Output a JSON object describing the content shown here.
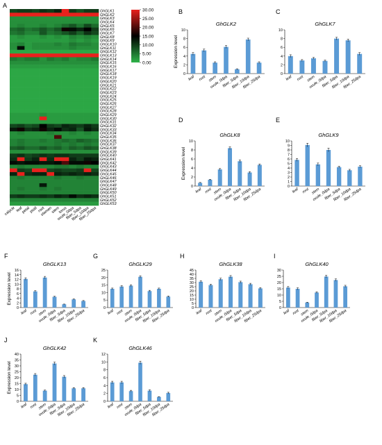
{
  "heatmap": {
    "panel_label": "A",
    "genes": [
      "GhGLK1",
      "GhGLK2",
      "GhGLK3",
      "GhGLK4",
      "GhGLK5",
      "GhGLK6",
      "GhGLK7",
      "GhGLK8",
      "GhGLK9",
      "GhGLK10",
      "GhGLK11",
      "GhGLK12",
      "GhGLK13",
      "GhGLK14",
      "GhGLK15",
      "GhGLK16",
      "GhGLK17",
      "GhGLK18",
      "GhGLK19",
      "GhGLK20",
      "GhGLK21",
      "GhGLK22",
      "GhGLK23",
      "GhGLK24",
      "GhGLK25",
      "GhGLK26",
      "GhGLK27",
      "GhGLK28",
      "GhGLK29",
      "GhGLK30",
      "GhGLK31",
      "GhGLK32",
      "GhGLK33",
      "GhGLK34",
      "GhGLK35",
      "GhGLK36",
      "GhGLK37",
      "GhGLK38",
      "GhGLK39",
      "GhGLK40",
      "GhGLK41",
      "GhGLK42",
      "GhGLK43",
      "GhGLK44",
      "GhGLK45",
      "GhGLK46",
      "GhGLK47",
      "GhGLK48",
      "GhGLK49",
      "GhGLK50",
      "GhGLK51",
      "GhGLK52",
      "GhGLK53"
    ],
    "tissues": [
      "calycle",
      "leaf",
      "petal",
      "pistil",
      "root",
      "stamen",
      "stem",
      "torus",
      "ovule_0dpa",
      "fiber_5dpa",
      "fiber_10dpa",
      "fiber_25dpa"
    ],
    "scale_ticks": [
      "30.00",
      "25.00",
      "20.00",
      "15.00",
      "10.00",
      "5.00",
      "0.00"
    ],
    "scale_min": 0,
    "scale_max": 30,
    "colors": {
      "low": "#2fb34a",
      "mid": "#000000",
      "high": "#e8211d"
    },
    "matrix": [
      [
        9,
        10,
        10,
        9,
        11,
        10,
        12,
        30,
        10,
        8,
        10,
        10
      ],
      [
        30,
        30,
        30,
        30,
        30,
        30,
        30,
        30,
        30,
        30,
        30,
        30
      ],
      [
        3,
        3,
        3,
        3,
        3,
        3,
        3,
        3,
        3,
        3,
        3,
        3
      ],
      [
        3,
        3,
        3,
        3,
        3,
        3,
        3,
        3,
        3,
        3,
        3,
        3
      ],
      [
        3,
        4,
        3,
        3,
        4,
        3,
        4,
        6,
        8,
        5,
        9,
        6
      ],
      [
        6,
        7,
        5,
        6,
        8,
        6,
        8,
        16,
        14,
        12,
        15,
        10
      ],
      [
        5,
        6,
        4,
        4,
        8,
        5,
        6,
        8,
        10,
        7,
        11,
        9
      ],
      [
        2,
        3,
        2,
        2,
        3,
        2,
        3,
        2,
        4,
        3,
        4,
        3
      ],
      [
        2,
        2,
        2,
        2,
        2,
        2,
        2,
        2,
        3,
        2,
        3,
        2
      ],
      [
        3,
        4,
        2,
        3,
        3,
        3,
        4,
        3,
        5,
        4,
        4,
        3
      ],
      [
        3,
        14,
        2,
        3,
        3,
        3,
        3,
        3,
        4,
        3,
        3,
        3
      ],
      [
        1,
        1,
        1,
        1,
        1,
        1,
        1,
        1,
        1,
        1,
        1,
        1
      ],
      [
        30,
        30,
        30,
        30,
        30,
        30,
        30,
        30,
        30,
        30,
        30,
        30
      ],
      [
        5,
        4,
        5,
        5,
        3,
        5,
        4,
        5,
        3,
        4,
        4,
        5
      ],
      [
        3,
        3,
        3,
        3,
        3,
        3,
        3,
        3,
        3,
        3,
        3,
        3
      ],
      [
        2,
        2,
        2,
        2,
        2,
        2,
        2,
        2,
        2,
        2,
        2,
        2
      ],
      [
        1,
        1,
        1,
        1,
        1,
        1,
        1,
        1,
        1,
        1,
        1,
        1
      ],
      [
        1,
        1,
        1,
        1,
        1,
        1,
        1,
        1,
        1,
        1,
        1,
        1
      ],
      [
        1,
        1,
        1,
        1,
        1,
        1,
        1,
        1,
        1,
        1,
        1,
        1
      ],
      [
        1,
        1,
        1,
        1,
        1,
        1,
        1,
        1,
        1,
        1,
        1,
        1
      ],
      [
        1,
        1,
        1,
        1,
        1,
        1,
        1,
        1,
        1,
        1,
        1,
        1
      ],
      [
        1,
        1,
        1,
        1,
        1,
        1,
        1,
        1,
        1,
        1,
        1,
        1
      ],
      [
        1,
        1,
        1,
        1,
        1,
        1,
        1,
        1,
        1,
        1,
        1,
        1
      ],
      [
        1,
        1,
        1,
        1,
        1,
        1,
        1,
        1,
        1,
        1,
        1,
        1
      ],
      [
        1,
        1,
        1,
        1,
        1,
        1,
        1,
        1,
        1,
        1,
        1,
        1
      ],
      [
        1,
        1,
        1,
        1,
        1,
        1,
        1,
        1,
        1,
        1,
        1,
        1
      ],
      [
        1,
        1,
        1,
        1,
        1,
        1,
        1,
        1,
        1,
        1,
        1,
        1
      ],
      [
        1,
        1,
        1,
        1,
        1,
        1,
        1,
        1,
        1,
        1,
        1,
        1
      ],
      [
        2,
        2,
        2,
        2,
        3,
        2,
        2,
        2,
        2,
        2,
        2,
        2
      ],
      [
        2,
        2,
        2,
        2,
        30,
        2,
        2,
        2,
        2,
        2,
        2,
        2
      ],
      [
        2,
        2,
        2,
        2,
        2,
        2,
        2,
        2,
        2,
        2,
        2,
        2
      ],
      [
        9,
        10,
        8,
        9,
        15,
        10,
        9,
        12,
        11,
        10,
        12,
        10
      ],
      [
        13,
        16,
        11,
        12,
        16,
        12,
        14,
        11,
        12,
        8,
        13,
        11
      ],
      [
        3,
        4,
        3,
        3,
        3,
        4,
        3,
        3,
        4,
        3,
        4,
        3
      ],
      [
        3,
        3,
        3,
        3,
        3,
        3,
        20,
        3,
        3,
        3,
        3,
        3
      ],
      [
        4,
        5,
        4,
        4,
        5,
        4,
        5,
        6,
        5,
        7,
        6,
        5
      ],
      [
        4,
        5,
        4,
        4,
        4,
        4,
        5,
        4,
        5,
        4,
        5,
        4
      ],
      [
        7,
        8,
        6,
        6,
        8,
        6,
        7,
        5,
        7,
        6,
        8,
        7
      ],
      [
        3,
        3,
        3,
        3,
        3,
        3,
        3,
        3,
        3,
        3,
        3,
        3
      ],
      [
        10,
        11,
        9,
        10,
        11,
        10,
        11,
        11,
        10,
        10,
        10,
        10
      ],
      [
        11,
        30,
        10,
        12,
        30,
        11,
        30,
        30,
        12,
        10,
        13,
        12
      ],
      [
        14,
        13,
        14,
        14,
        13,
        13,
        14,
        20,
        14,
        14,
        16,
        15
      ],
      [
        4,
        5,
        4,
        4,
        4,
        4,
        5,
        5,
        4,
        5,
        4,
        4
      ],
      [
        30,
        10,
        9,
        30,
        30,
        9,
        10,
        9,
        9,
        10,
        30,
        9
      ],
      [
        12,
        30,
        11,
        12,
        12,
        30,
        12,
        11,
        12,
        11,
        12,
        11
      ],
      [
        4,
        5,
        4,
        4,
        4,
        4,
        5,
        4,
        4,
        5,
        4,
        4
      ],
      [
        4,
        4,
        4,
        4,
        4,
        4,
        4,
        4,
        4,
        4,
        4,
        4
      ],
      [
        4,
        4,
        4,
        4,
        13,
        4,
        4,
        4,
        4,
        4,
        4,
        4
      ],
      [
        4,
        5,
        4,
        4,
        5,
        4,
        5,
        4,
        4,
        4,
        4,
        4
      ],
      [
        4,
        4,
        4,
        4,
        4,
        4,
        4,
        4,
        4,
        4,
        4,
        4
      ],
      [
        10,
        11,
        10,
        10,
        11,
        10,
        12,
        11,
        14,
        11,
        12,
        11
      ],
      [
        4,
        4,
        4,
        4,
        4,
        4,
        4,
        4,
        4,
        4,
        4,
        4
      ],
      [
        2,
        2,
        2,
        2,
        2,
        2,
        2,
        2,
        2,
        2,
        2,
        2
      ]
    ]
  },
  "chart_data": [
    {
      "panel_label": "B",
      "type": "bar",
      "title": "GhGLK2",
      "ylabel": "Expression level",
      "categories": [
        "leaf",
        "root",
        "stem",
        "ovule_0dpa",
        "fiber_5dpa",
        "fiber_10dpa",
        "fiber_25dpa"
      ],
      "values": [
        4.5,
        5.3,
        2.5,
        6.1,
        1.0,
        7.8,
        2.5
      ],
      "errors": [
        0.3,
        0.3,
        0.2,
        0.3,
        0.1,
        0.3,
        0.2
      ],
      "ylim": [
        0,
        10
      ],
      "yticks": [
        "0",
        "2",
        "4",
        "6",
        "8",
        "10"
      ],
      "bar_color": "#5b9bd5"
    },
    {
      "panel_label": "C",
      "type": "bar",
      "title": "GhGLK7",
      "ylabel": "",
      "categories": [
        "leaf",
        "root",
        "stem",
        "ovule_0dpa",
        "fiber_5dpa",
        "fiber_10dpa",
        "fiber_25dpa"
      ],
      "values": [
        4.0,
        3.0,
        3.5,
        2.9,
        8.0,
        7.6,
        4.5
      ],
      "errors": [
        0.3,
        0.2,
        0.2,
        0.2,
        0.3,
        0.3,
        0.3
      ],
      "ylim": [
        0,
        10
      ],
      "yticks": [
        "0",
        "2",
        "4",
        "6",
        "8",
        "10"
      ],
      "bar_color": "#5b9bd5"
    },
    {
      "panel_label": "D",
      "type": "bar",
      "title": "GhGLK8",
      "ylabel": "Expression level",
      "categories": [
        "leaf",
        "root",
        "stem",
        "ovule_0dpa",
        "fiber_5dpa",
        "fiber_10dpa",
        "fiber_25dpa"
      ],
      "values": [
        0.7,
        1.4,
        3.7,
        8.4,
        5.5,
        3.0,
        4.7
      ],
      "errors": [
        0.1,
        0.1,
        0.2,
        0.3,
        0.3,
        0.2,
        0.2
      ],
      "ylim": [
        0,
        10
      ],
      "yticks": [
        "0",
        "2",
        "4",
        "6",
        "8",
        "10"
      ],
      "bar_color": "#5b9bd5"
    },
    {
      "panel_label": "E",
      "type": "bar",
      "title": "GhGLK9",
      "ylabel": "",
      "categories": [
        "leaf",
        "root",
        "stem",
        "ovule_0dpa",
        "fiber_5dpa",
        "fiber_10dpa",
        "fiber_25dpa"
      ],
      "values": [
        5.8,
        9.1,
        4.8,
        8.0,
        4.2,
        3.5,
        4.3
      ],
      "errors": [
        0.3,
        0.4,
        0.3,
        0.4,
        0.2,
        0.2,
        0.2
      ],
      "ylim": [
        0,
        10
      ],
      "yticks": [
        "0",
        "1",
        "2",
        "3",
        "4",
        "5",
        "6",
        "7",
        "8",
        "9",
        "10"
      ],
      "bar_color": "#5b9bd5"
    },
    {
      "panel_label": "F",
      "type": "bar",
      "title": "GhGLK13",
      "ylabel": "Expression level",
      "categories": [
        "leaf",
        "root",
        "stem",
        "ovule_0dpa",
        "fiber_5dpa",
        "fiber_10dpa",
        "fiber_25dpa"
      ],
      "values": [
        12.2,
        6.9,
        12.8,
        4.6,
        1.4,
        3.5,
        2.8
      ],
      "errors": [
        0.5,
        0.3,
        0.5,
        0.2,
        0.1,
        0.2,
        0.2
      ],
      "ylim": [
        0,
        16
      ],
      "yticks": [
        "0",
        "2",
        "4",
        "6",
        "8",
        "10",
        "12",
        "14",
        "16"
      ],
      "bar_color": "#5b9bd5"
    },
    {
      "panel_label": "G",
      "type": "bar",
      "title": "GhGLK29",
      "ylabel": "",
      "categories": [
        "leaf",
        "root",
        "stem",
        "ovule_0dpa",
        "fiber_5dpa",
        "fiber_10dpa",
        "fiber_25dpa"
      ],
      "values": [
        12.5,
        14.0,
        14.6,
        20.5,
        11.0,
        12.5,
        7.3
      ],
      "errors": [
        0.5,
        0.6,
        0.6,
        0.7,
        0.5,
        0.5,
        0.4
      ],
      "ylim": [
        0,
        25
      ],
      "yticks": [
        "0",
        "5",
        "10",
        "15",
        "20",
        "25"
      ],
      "bar_color": "#5b9bd5"
    },
    {
      "panel_label": "H",
      "type": "bar",
      "title": "GhGLK38",
      "ylabel": "",
      "categories": [
        "leaf",
        "root",
        "stem",
        "ovule_0dpa",
        "fiber_5dpa",
        "fiber_10dpa",
        "fiber_25dpa"
      ],
      "values": [
        31.0,
        27.0,
        34.0,
        37.0,
        30.5,
        28.0,
        23.0
      ],
      "errors": [
        1.2,
        1.0,
        1.3,
        1.4,
        1.2,
        1.1,
        1.0
      ],
      "ylim": [
        0,
        45
      ],
      "yticks": [
        "0",
        "5",
        "10",
        "15",
        "20",
        "25",
        "30",
        "35",
        "40",
        "45"
      ],
      "bar_color": "#5b9bd5"
    },
    {
      "panel_label": "I",
      "type": "bar",
      "title": "GhGLK40",
      "ylabel": "",
      "categories": [
        "leaf",
        "root",
        "stem",
        "ovule_0dpa",
        "fiber_5dpa",
        "fiber_10dpa",
        "fiber_25dpa"
      ],
      "values": [
        16.0,
        15.0,
        4.0,
        12.0,
        24.8,
        22.0,
        17.0
      ],
      "errors": [
        0.8,
        0.8,
        0.3,
        0.6,
        1.0,
        0.9,
        0.8
      ],
      "ylim": [
        0,
        30
      ],
      "yticks": [
        "0",
        "5",
        "10",
        "15",
        "20",
        "25",
        "30"
      ],
      "bar_color": "#5b9bd5"
    },
    {
      "panel_label": "J",
      "type": "bar",
      "title": "GhGLK42",
      "ylabel": "Expression level",
      "categories": [
        "leaf",
        "root",
        "stem",
        "ovule_0dpa",
        "fiber_5dpa",
        "fiber_10dpa",
        "fiber_25dpa"
      ],
      "values": [
        14.5,
        22.5,
        9.0,
        32.0,
        20.8,
        11.0,
        11.0
      ],
      "errors": [
        0.8,
        1.0,
        0.5,
        1.2,
        1.0,
        0.6,
        0.6
      ],
      "ylim": [
        0,
        40
      ],
      "yticks": [
        "0",
        "5",
        "10",
        "15",
        "20",
        "25",
        "30",
        "35",
        "40"
      ],
      "bar_color": "#5b9bd5"
    },
    {
      "panel_label": "K",
      "type": "bar",
      "title": "GhGLK46",
      "ylabel": "",
      "categories": [
        "leaf",
        "root",
        "stem",
        "ovule_0dpa",
        "fiber_5dpa",
        "fiber_10dpa",
        "fiber_25dpa"
      ],
      "values": [
        4.8,
        4.8,
        2.6,
        9.8,
        2.7,
        1.1,
        2.1
      ],
      "errors": [
        0.3,
        0.3,
        0.2,
        0.4,
        0.2,
        0.1,
        0.2
      ],
      "ylim": [
        0,
        12
      ],
      "yticks": [
        "0",
        "2",
        "4",
        "6",
        "8",
        "10",
        "12"
      ],
      "bar_color": "#5b9bd5"
    }
  ]
}
